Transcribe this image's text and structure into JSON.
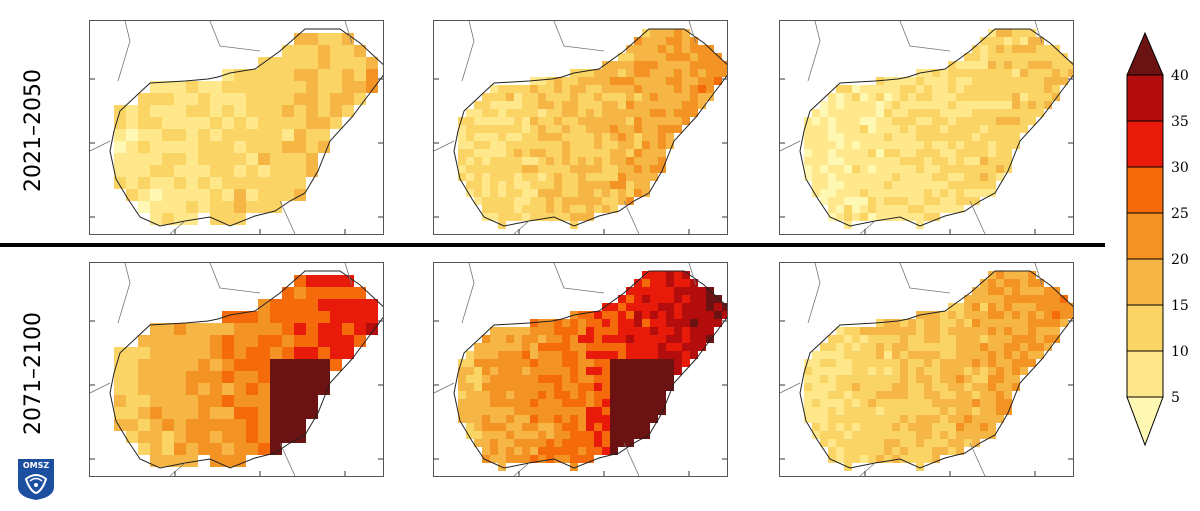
{
  "rows": [
    {
      "label": "2021–2050"
    },
    {
      "label": "2071–2100"
    }
  ],
  "colorbar": {
    "tick_labels": [
      "5",
      "10",
      "15",
      "20",
      "25",
      "30",
      "35",
      "40"
    ],
    "colors": [
      "#fff8b4",
      "#ffe88c",
      "#fad464",
      "#f6b646",
      "#f39324",
      "#f56a0b",
      "#e81a0a",
      "#b30d0d",
      "#6b1212"
    ],
    "extend": "both"
  },
  "map_panels": [
    {
      "row": 0,
      "col": 0,
      "level": 13
    },
    {
      "row": 0,
      "col": 1,
      "level": 17
    },
    {
      "row": 0,
      "col": 2,
      "level": 11
    },
    {
      "row": 1,
      "col": 0,
      "level": 26
    },
    {
      "row": 1,
      "col": 1,
      "level": 30
    },
    {
      "row": 1,
      "col": 2,
      "level": 17
    }
  ],
  "logo": {
    "text": "OMSZ",
    "color": "#1d4fa0"
  }
}
